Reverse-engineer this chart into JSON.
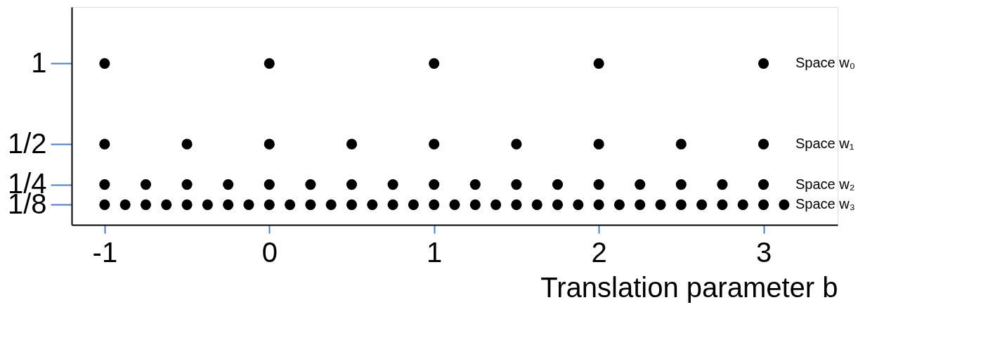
{
  "chart_data": {
    "type": "scatter",
    "xlabel": "Translation parameter b",
    "xlim": [
      -1.2,
      3.45
    ],
    "ylim": [
      0,
      1.35
    ],
    "xticks": [
      -1,
      0,
      1,
      2,
      3
    ],
    "yticks": [
      {
        "value": 0.125,
        "label": "1/8"
      },
      {
        "value": 0.25,
        "label": "1/4"
      },
      {
        "value": 0.5,
        "label": "1/2"
      },
      {
        "value": 1,
        "label": "1"
      }
    ],
    "grid": false,
    "legend": false,
    "marker": "circle",
    "series": [
      {
        "name": "Space w₀",
        "color": "#000000",
        "x": [
          -1,
          0,
          1,
          2,
          3
        ],
        "values": [
          1,
          1,
          1,
          1,
          1
        ]
      },
      {
        "name": "Space w₁",
        "color": "#000000",
        "x": [
          -1,
          -0.5,
          0,
          0.5,
          1,
          1.5,
          2,
          2.5,
          3
        ],
        "values": [
          0.5,
          0.5,
          0.5,
          0.5,
          0.5,
          0.5,
          0.5,
          0.5,
          0.5
        ]
      },
      {
        "name": "Space w₂",
        "color": "#000000",
        "x": [
          -1,
          -0.75,
          -0.5,
          -0.25,
          0,
          0.25,
          0.5,
          0.75,
          1,
          1.25,
          1.5,
          1.75,
          2,
          2.25,
          2.5,
          2.75,
          3
        ],
        "values": [
          0.25,
          0.25,
          0.25,
          0.25,
          0.25,
          0.25,
          0.25,
          0.25,
          0.25,
          0.25,
          0.25,
          0.25,
          0.25,
          0.25,
          0.25,
          0.25,
          0.25
        ]
      },
      {
        "name": "Space w₃",
        "color": "#000000",
        "x": [
          -1,
          -0.875,
          -0.75,
          -0.625,
          -0.5,
          -0.375,
          -0.25,
          -0.125,
          0,
          0.125,
          0.25,
          0.375,
          0.5,
          0.625,
          0.75,
          0.875,
          1,
          1.125,
          1.25,
          1.375,
          1.5,
          1.625,
          1.75,
          1.875,
          2,
          2.125,
          2.25,
          2.375,
          2.5,
          2.625,
          2.75,
          2.875,
          3,
          3.125
        ],
        "values": [
          0.125,
          0.125,
          0.125,
          0.125,
          0.125,
          0.125,
          0.125,
          0.125,
          0.125,
          0.125,
          0.125,
          0.125,
          0.125,
          0.125,
          0.125,
          0.125,
          0.125,
          0.125,
          0.125,
          0.125,
          0.125,
          0.125,
          0.125,
          0.125,
          0.125,
          0.125,
          0.125,
          0.125,
          0.125,
          0.125,
          0.125,
          0.125,
          0.125,
          0.125
        ]
      }
    ]
  }
}
